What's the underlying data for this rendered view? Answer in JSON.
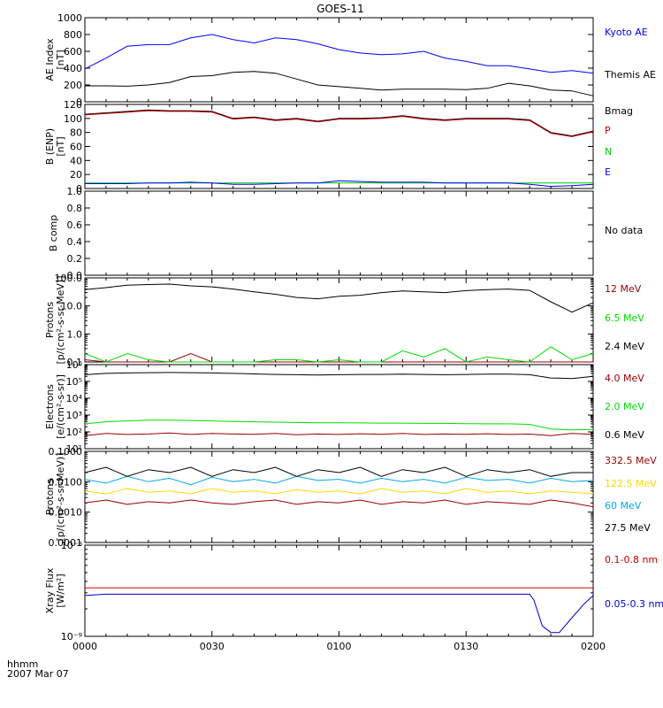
{
  "title": "GOES-11",
  "footer": {
    "time_label": "hhmm",
    "date_label": "2007 Mar 07"
  },
  "x_ticks": [
    "0000",
    "0030",
    "0100",
    "0130",
    "0200"
  ],
  "chart_data": [
    {
      "id": "ae",
      "type": "line",
      "ylabel": [
        "AE Index",
        "[nT]"
      ],
      "yscale": "linear",
      "ylim": [
        0,
        1000
      ],
      "yticks": [
        0,
        200,
        400,
        600,
        800,
        1000
      ],
      "ytick_labels": [
        "0",
        "200",
        "400",
        "600",
        "800",
        "1000"
      ],
      "x": [
        0,
        5,
        10,
        15,
        20,
        25,
        30,
        35,
        40,
        45,
        50,
        55,
        60,
        65,
        70,
        75,
        80,
        85,
        90,
        95,
        100,
        105,
        110,
        115,
        120
      ],
      "series": [
        {
          "name": "Kyoto AE",
          "color": "#0000ff",
          "values": [
            390,
            520,
            660,
            680,
            680,
            760,
            800,
            740,
            700,
            760,
            740,
            690,
            620,
            580,
            560,
            570,
            600,
            520,
            480,
            430,
            430,
            390,
            350,
            370,
            340
          ]
        },
        {
          "name": "Themis AE",
          "color": "#000000",
          "values": [
            190,
            190,
            185,
            200,
            230,
            300,
            310,
            350,
            360,
            340,
            270,
            200,
            180,
            160,
            140,
            150,
            150,
            150,
            145,
            160,
            220,
            190,
            140,
            130,
            70
          ]
        }
      ]
    },
    {
      "id": "bfield",
      "type": "line",
      "ylabel": [
        "B (ENP)",
        "[nT]"
      ],
      "yscale": "linear",
      "ylim": [
        0,
        120
      ],
      "yticks": [
        0,
        20,
        40,
        60,
        80,
        100,
        120
      ],
      "ytick_labels": [
        "0",
        "20",
        "40",
        "60",
        "80",
        "100",
        "120"
      ],
      "x": [
        0,
        5,
        10,
        15,
        20,
        25,
        30,
        35,
        40,
        45,
        50,
        55,
        60,
        65,
        70,
        75,
        80,
        85,
        90,
        95,
        100,
        105,
        110,
        115,
        120
      ],
      "series": [
        {
          "name": "Bmag",
          "color": "#000000",
          "values": [
            106,
            108,
            110,
            112,
            111,
            111,
            110,
            100,
            102,
            98,
            100,
            96,
            100,
            100,
            101,
            104,
            100,
            98,
            100,
            100,
            100,
            98,
            80,
            75,
            82
          ]
        },
        {
          "name": "P",
          "color": "#cc0000",
          "values": [
            105,
            107,
            109,
            111,
            110,
            110,
            109,
            99,
            101,
            97,
            99,
            95,
            99,
            99,
            100,
            103,
            99,
            97,
            99,
            99,
            99,
            97,
            79,
            74,
            81
          ]
        },
        {
          "name": "N",
          "color": "#00cc00",
          "values": [
            8,
            8,
            8,
            8,
            8,
            8,
            8,
            8,
            8,
            8,
            8,
            8,
            8,
            8,
            8,
            8,
            8,
            8,
            8,
            8,
            8,
            8,
            8,
            8,
            8
          ]
        },
        {
          "name": "E",
          "color": "#0000ff",
          "values": [
            7,
            7,
            7,
            8,
            8,
            9,
            8,
            6,
            6,
            7,
            8,
            8,
            11,
            10,
            9,
            9,
            9,
            8,
            8,
            8,
            8,
            6,
            3,
            4,
            6
          ]
        }
      ]
    },
    {
      "id": "bcomp",
      "type": "line",
      "ylabel": [
        "B comp"
      ],
      "yscale": "linear",
      "ylim": [
        0,
        1
      ],
      "yticks": [
        0,
        0.2,
        0.4,
        0.6,
        0.8,
        1.0
      ],
      "ytick_labels": [
        "0.0",
        "0.2",
        "0.4",
        "0.6",
        "0.8",
        "1.0"
      ],
      "x": [],
      "series": [],
      "no_data_label": "No data"
    },
    {
      "id": "protons_low",
      "type": "line",
      "ylabel": [
        "Protons",
        "[p/(cm²-s-sr-MeV)]"
      ],
      "yscale": "log",
      "ylim": [
        0.1,
        100
      ],
      "yticks": [
        0.1,
        1,
        10,
        100
      ],
      "ytick_labels": [
        "0.1",
        "1.0",
        "10.0",
        "100.0"
      ],
      "x": [
        0,
        5,
        10,
        15,
        20,
        25,
        30,
        35,
        40,
        45,
        50,
        55,
        60,
        65,
        70,
        75,
        80,
        85,
        90,
        95,
        100,
        105,
        110,
        115,
        120
      ],
      "series": [
        {
          "name": "12 MeV",
          "color": "#990000",
          "values": [
            0.12,
            0.1,
            0.1,
            0.1,
            0.1,
            0.2,
            0.1,
            0.1,
            0.1,
            0.1,
            0.1,
            0.1,
            0.1,
            0.1,
            0.1,
            0.1,
            0.1,
            0.1,
            0.1,
            0.1,
            0.1,
            0.1,
            0.1,
            0.1,
            0.1
          ]
        },
        {
          "name": "6.5 MeV",
          "color": "#00dd00",
          "values": [
            0.2,
            0.1,
            0.2,
            0.12,
            0.1,
            0.1,
            0.1,
            0.1,
            0.1,
            0.12,
            0.12,
            0.1,
            0.12,
            0.1,
            0.1,
            0.25,
            0.15,
            0.3,
            0.1,
            0.15,
            0.12,
            0.1,
            0.35,
            0.12,
            0.2
          ]
        },
        {
          "name": "2.4 MeV",
          "color": "#000000",
          "values": [
            38,
            45,
            55,
            58,
            60,
            52,
            48,
            40,
            32,
            26,
            20,
            18,
            22,
            24,
            30,
            34,
            32,
            30,
            35,
            38,
            40,
            36,
            14,
            6,
            13
          ]
        }
      ]
    },
    {
      "id": "electrons",
      "type": "line",
      "ylabel": [
        "Electrons",
        "[e/(cm²-s-sr)]"
      ],
      "yscale": "log",
      "ylim": [
        10,
        1000000
      ],
      "yticks": [
        10,
        100,
        1000,
        10000,
        100000,
        1000000
      ],
      "ytick_labels": [
        "10¹",
        "10²",
        "10³",
        "10⁴",
        "10⁵",
        "10⁶"
      ],
      "x": [
        0,
        5,
        10,
        15,
        20,
        25,
        30,
        35,
        40,
        45,
        50,
        55,
        60,
        65,
        70,
        75,
        80,
        85,
        90,
        95,
        100,
        105,
        110,
        115,
        120
      ],
      "series": [
        {
          "name": "4.0 MeV",
          "color": "#990000",
          "values": [
            60,
            80,
            70,
            75,
            85,
            70,
            80,
            75,
            72,
            80,
            68,
            75,
            70,
            78,
            72,
            80,
            70,
            75,
            72,
            78,
            70,
            74,
            60,
            80,
            70
          ]
        },
        {
          "name": "2.0 MeV",
          "color": "#00dd00",
          "values": [
            300,
            400,
            450,
            500,
            500,
            480,
            450,
            420,
            400,
            380,
            360,
            350,
            350,
            340,
            330,
            330,
            320,
            320,
            310,
            300,
            300,
            280,
            150,
            130,
            140
          ]
        },
        {
          "name": "0.6 MeV",
          "color": "#000000",
          "values": [
            250000,
            300000,
            320000,
            330000,
            340000,
            330000,
            320000,
            300000,
            280000,
            260000,
            250000,
            240000,
            250000,
            260000,
            260000,
            270000,
            260000,
            250000,
            260000,
            270000,
            270000,
            250000,
            160000,
            150000,
            200000
          ]
        }
      ]
    },
    {
      "id": "protons_high",
      "type": "line",
      "ylabel": [
        "Protons",
        "[p/(cm²-s-sr-MeV)]"
      ],
      "yscale": "log",
      "ylim": [
        0.0001,
        0.1
      ],
      "yticks": [
        0.0001,
        0.001,
        0.01,
        0.1
      ],
      "ytick_labels": [
        "0.0001",
        "0.0010",
        "0.0100",
        "0.1000"
      ],
      "x": [
        0,
        5,
        10,
        15,
        20,
        25,
        30,
        35,
        40,
        45,
        50,
        55,
        60,
        65,
        70,
        75,
        80,
        85,
        90,
        95,
        100,
        105,
        110,
        115,
        120
      ],
      "series": [
        {
          "name": "332.5 MeV",
          "color": "#990000",
          "values": [
            0.002,
            0.0025,
            0.0018,
            0.0022,
            0.002,
            0.0025,
            0.002,
            0.0018,
            0.0022,
            0.0025,
            0.0018,
            0.0022,
            0.002,
            0.0025,
            0.0018,
            0.0022,
            0.002,
            0.0025,
            0.0018,
            0.0022,
            0.002,
            0.0018,
            0.0025,
            0.002,
            0.0015
          ]
        },
        {
          "name": "122.5 MeV",
          "color": "#ffd700",
          "values": [
            0.005,
            0.004,
            0.006,
            0.0045,
            0.005,
            0.004,
            0.006,
            0.0045,
            0.005,
            0.004,
            0.0055,
            0.0045,
            0.005,
            0.004,
            0.006,
            0.0045,
            0.005,
            0.004,
            0.006,
            0.0045,
            0.005,
            0.004,
            0.005,
            0.0045,
            0.004
          ]
        },
        {
          "name": "60 MeV",
          "color": "#00aaee",
          "values": [
            0.012,
            0.009,
            0.015,
            0.01,
            0.013,
            0.008,
            0.014,
            0.01,
            0.012,
            0.009,
            0.015,
            0.011,
            0.012,
            0.009,
            0.013,
            0.01,
            0.012,
            0.009,
            0.014,
            0.011,
            0.012,
            0.009,
            0.013,
            0.01,
            0.011
          ]
        },
        {
          "name": "27.5 MeV",
          "color": "#000000",
          "values": [
            0.02,
            0.03,
            0.015,
            0.025,
            0.02,
            0.03,
            0.015,
            0.025,
            0.02,
            0.03,
            0.015,
            0.025,
            0.02,
            0.03,
            0.015,
            0.025,
            0.02,
            0.03,
            0.015,
            0.025,
            0.02,
            0.025,
            0.015,
            0.02,
            0.02
          ]
        }
      ]
    },
    {
      "id": "xray",
      "type": "line",
      "ylabel": [
        "Xray Flux",
        "[W/m²]"
      ],
      "yscale": "log",
      "ylim": [
        1e-09,
        1e-08
      ],
      "yticks": [
        1e-09,
        1e-08
      ],
      "ytick_labels": [
        "10⁻⁹",
        "10⁻⁸"
      ],
      "x": [
        0,
        5,
        10,
        15,
        20,
        25,
        30,
        35,
        40,
        45,
        50,
        55,
        60,
        65,
        70,
        75,
        80,
        85,
        90,
        95,
        100,
        105,
        106,
        108,
        110,
        112,
        115,
        118,
        120
      ],
      "series": [
        {
          "name": "0.1-0.8 nm",
          "color": "#cc0000",
          "values": [
            3.4e-09,
            3.4e-09,
            3.4e-09,
            3.4e-09,
            3.4e-09,
            3.4e-09,
            3.4e-09,
            3.4e-09,
            3.4e-09,
            3.4e-09,
            3.4e-09,
            3.4e-09,
            3.4e-09,
            3.4e-09,
            3.4e-09,
            3.4e-09,
            3.4e-09,
            3.4e-09,
            3.4e-09,
            3.4e-09,
            3.4e-09,
            3.4e-09,
            3.4e-09,
            3.4e-09,
            3.4e-09,
            3.4e-09,
            3.4e-09,
            3.4e-09,
            3.4e-09
          ]
        },
        {
          "name": "0.05-0.3 nm",
          "color": "#0000cc",
          "values": [
            2.8e-09,
            2.9e-09,
            2.9e-09,
            2.9e-09,
            2.9e-09,
            2.9e-09,
            2.9e-09,
            2.9e-09,
            2.9e-09,
            2.9e-09,
            2.9e-09,
            2.9e-09,
            2.9e-09,
            2.9e-09,
            2.9e-09,
            2.9e-09,
            2.9e-09,
            2.9e-09,
            2.9e-09,
            2.9e-09,
            2.9e-09,
            2.9e-09,
            2.5e-09,
            1.3e-09,
            1.1e-09,
            1.1e-09,
            1.6e-09,
            2.3e-09,
            2.8e-09
          ]
        }
      ]
    }
  ]
}
